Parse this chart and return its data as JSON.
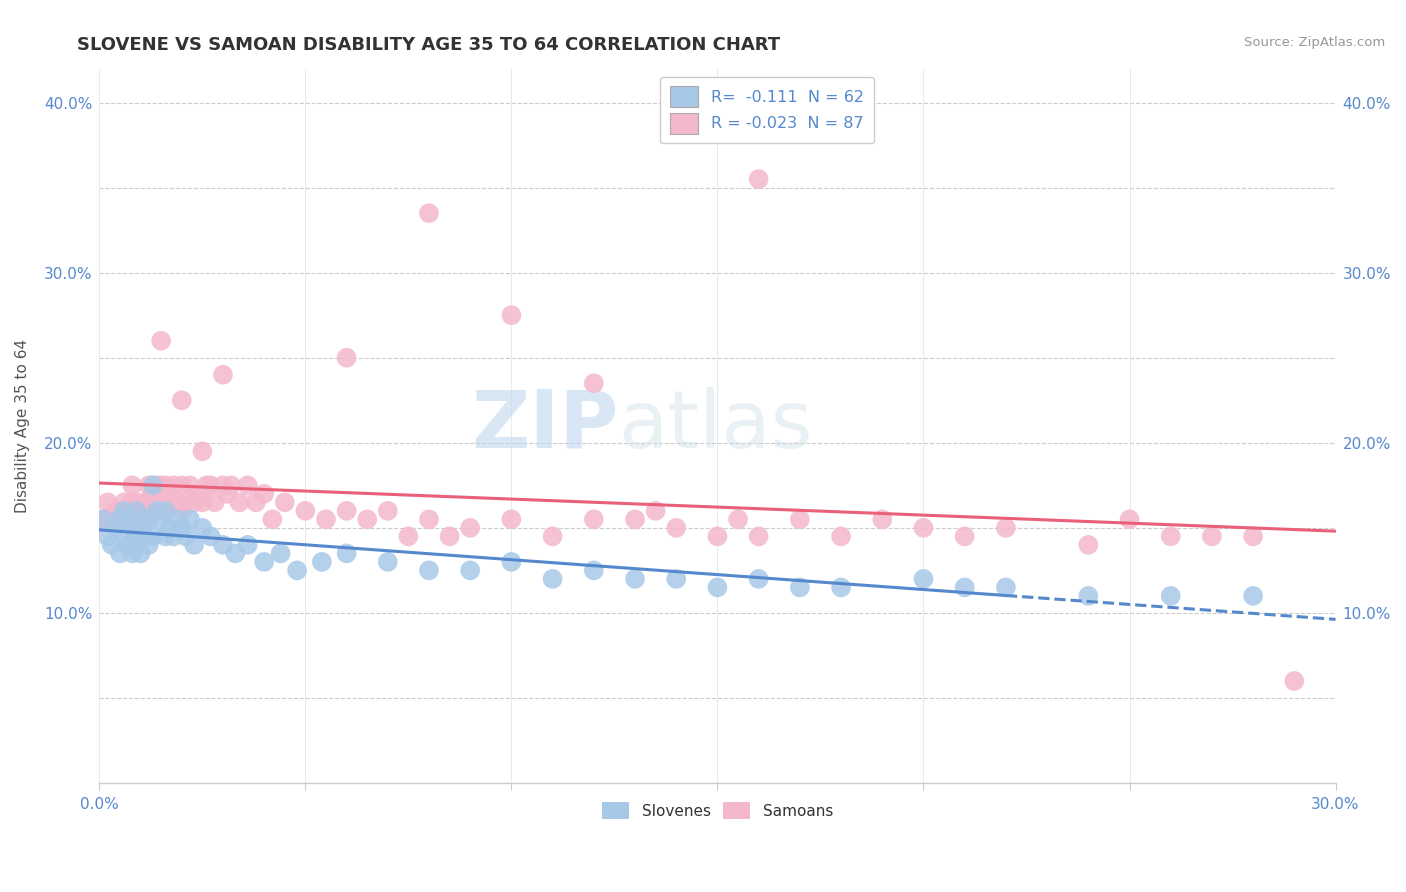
{
  "title": "SLOVENE VS SAMOAN DISABILITY AGE 35 TO 64 CORRELATION CHART",
  "source": "Source: ZipAtlas.com",
  "ylabel": "Disability Age 35 to 64",
  "xlim": [
    0.0,
    0.3
  ],
  "ylim": [
    0.0,
    0.42
  ],
  "slovene_color": "#a8c8e8",
  "samoan_color": "#f4b8cc",
  "slovene_line_color": "#5588cc",
  "samoan_line_color": "#e8607a",
  "R_slovene": "-0.111",
  "N_slovene": 62,
  "R_samoan": "-0.023",
  "N_samoan": 87,
  "watermark_zip": "ZIP",
  "watermark_atlas": "atlas",
  "slovene_x": [
    0.001,
    0.002,
    0.003,
    0.004,
    0.005,
    0.005,
    0.006,
    0.006,
    0.007,
    0.007,
    0.008,
    0.008,
    0.009,
    0.009,
    0.009,
    0.01,
    0.01,
    0.011,
    0.011,
    0.012,
    0.012,
    0.013,
    0.013,
    0.014,
    0.015,
    0.016,
    0.016,
    0.017,
    0.018,
    0.019,
    0.02,
    0.021,
    0.022,
    0.023,
    0.025,
    0.027,
    0.03,
    0.033,
    0.036,
    0.04,
    0.044,
    0.048,
    0.054,
    0.06,
    0.07,
    0.08,
    0.09,
    0.1,
    0.11,
    0.12,
    0.13,
    0.14,
    0.15,
    0.16,
    0.17,
    0.18,
    0.2,
    0.21,
    0.22,
    0.24,
    0.26,
    0.28
  ],
  "slovene_y": [
    0.155,
    0.145,
    0.14,
    0.15,
    0.135,
    0.155,
    0.145,
    0.16,
    0.14,
    0.155,
    0.15,
    0.135,
    0.145,
    0.16,
    0.145,
    0.15,
    0.135,
    0.145,
    0.155,
    0.14,
    0.155,
    0.145,
    0.175,
    0.16,
    0.155,
    0.145,
    0.16,
    0.15,
    0.145,
    0.155,
    0.15,
    0.145,
    0.155,
    0.14,
    0.15,
    0.145,
    0.14,
    0.135,
    0.14,
    0.13,
    0.135,
    0.125,
    0.13,
    0.135,
    0.13,
    0.125,
    0.125,
    0.13,
    0.12,
    0.125,
    0.12,
    0.12,
    0.115,
    0.12,
    0.115,
    0.115,
    0.12,
    0.115,
    0.115,
    0.11,
    0.11,
    0.11
  ],
  "samoan_x": [
    0.001,
    0.002,
    0.003,
    0.004,
    0.005,
    0.006,
    0.007,
    0.007,
    0.008,
    0.008,
    0.009,
    0.009,
    0.01,
    0.01,
    0.011,
    0.011,
    0.012,
    0.012,
    0.013,
    0.013,
    0.014,
    0.014,
    0.015,
    0.015,
    0.016,
    0.016,
    0.017,
    0.018,
    0.019,
    0.02,
    0.02,
    0.021,
    0.022,
    0.023,
    0.024,
    0.025,
    0.026,
    0.027,
    0.028,
    0.03,
    0.031,
    0.032,
    0.034,
    0.036,
    0.038,
    0.04,
    0.042,
    0.045,
    0.05,
    0.055,
    0.06,
    0.065,
    0.07,
    0.075,
    0.08,
    0.085,
    0.09,
    0.1,
    0.11,
    0.12,
    0.13,
    0.135,
    0.14,
    0.15,
    0.155,
    0.16,
    0.17,
    0.18,
    0.19,
    0.2,
    0.21,
    0.22,
    0.24,
    0.25,
    0.26,
    0.27,
    0.28,
    0.29,
    0.015,
    0.02,
    0.025,
    0.03,
    0.06,
    0.08,
    0.1,
    0.12,
    0.16
  ],
  "samoan_y": [
    0.155,
    0.165,
    0.155,
    0.16,
    0.155,
    0.165,
    0.155,
    0.16,
    0.165,
    0.175,
    0.155,
    0.165,
    0.16,
    0.155,
    0.165,
    0.155,
    0.165,
    0.175,
    0.16,
    0.17,
    0.165,
    0.175,
    0.16,
    0.175,
    0.165,
    0.175,
    0.165,
    0.175,
    0.165,
    0.175,
    0.16,
    0.165,
    0.175,
    0.165,
    0.17,
    0.165,
    0.175,
    0.175,
    0.165,
    0.175,
    0.17,
    0.175,
    0.165,
    0.175,
    0.165,
    0.17,
    0.155,
    0.165,
    0.16,
    0.155,
    0.16,
    0.155,
    0.16,
    0.145,
    0.155,
    0.145,
    0.15,
    0.155,
    0.145,
    0.155,
    0.155,
    0.16,
    0.15,
    0.145,
    0.155,
    0.145,
    0.155,
    0.145,
    0.155,
    0.15,
    0.145,
    0.15,
    0.14,
    0.155,
    0.145,
    0.145,
    0.145,
    0.06,
    0.26,
    0.225,
    0.195,
    0.24,
    0.25,
    0.335,
    0.275,
    0.235,
    0.355
  ]
}
